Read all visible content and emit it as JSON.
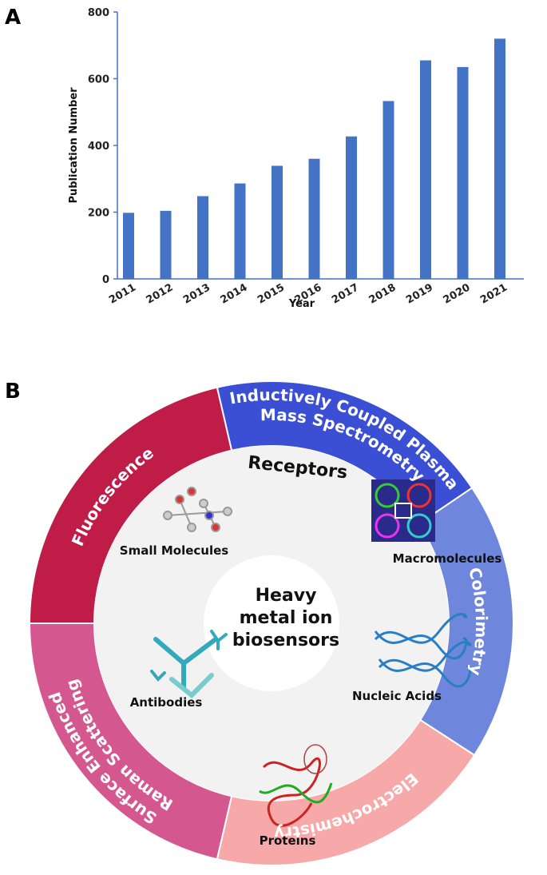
{
  "panel_labels": [
    "A",
    "B"
  ],
  "chart_data": {
    "type": "bar",
    "x_label": "Year",
    "y_label": "Publication Number",
    "categories": [
      "2011",
      "2012",
      "2013",
      "2014",
      "2015",
      "2016",
      "2017",
      "2018",
      "2019",
      "2020",
      "2021"
    ],
    "values": [
      198,
      204,
      248,
      286,
      339,
      360,
      427,
      533,
      655,
      635,
      720
    ],
    "color": "#4472c4",
    "ylim": [
      0,
      800
    ],
    "yticks": [
      0,
      200,
      400,
      600,
      800
    ]
  },
  "diagram": {
    "center": [
      "Heavy",
      "metal ion",
      "biosensors"
    ],
    "receptors_title": "Receptors",
    "receptors": [
      "Small Molecules",
      "Macromolecules",
      "Antibodies",
      "Nucleic Acids",
      "Proteins"
    ],
    "methods": [
      {
        "lines": [
          "Inductively Coupled Plasma",
          "Mass Spectrometry"
        ]
      },
      {
        "lines": [
          "Colorimetry"
        ]
      },
      {
        "lines": [
          "Electrochemistry"
        ]
      },
      {
        "lines": [
          "Surface Enhanced",
          "Raman Scattering"
        ]
      },
      {
        "lines": [
          "Fluorescence"
        ]
      }
    ]
  }
}
